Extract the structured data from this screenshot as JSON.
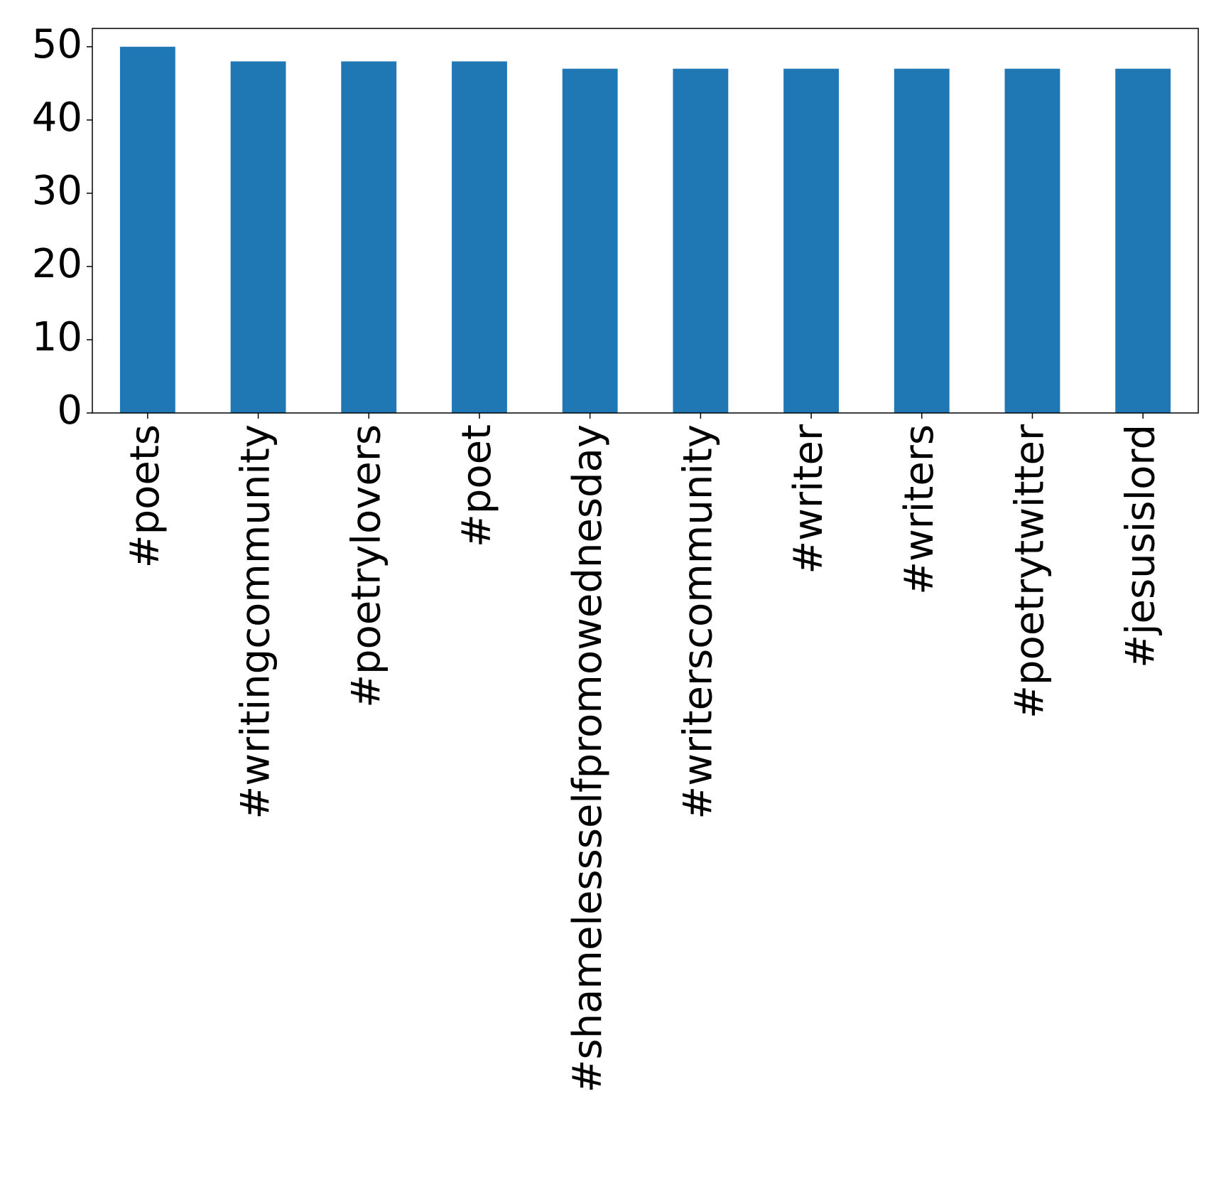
{
  "chart_data": {
    "type": "bar",
    "categories": [
      "#poets",
      "#writingcommunity",
      "#poetrylovers",
      "#poet",
      "#shamelessselfpromowednesday",
      "#writerscommunity",
      "#writer",
      "#writers",
      "#poetrytwitter",
      "#jesusislord"
    ],
    "values": [
      50,
      48,
      48,
      48,
      47,
      47,
      47,
      47,
      47,
      47
    ],
    "color": "#1f77b4",
    "ylim": [
      0,
      52.5
    ],
    "yticks": [
      0,
      10,
      20,
      30,
      40,
      50
    ],
    "grid": false
  }
}
